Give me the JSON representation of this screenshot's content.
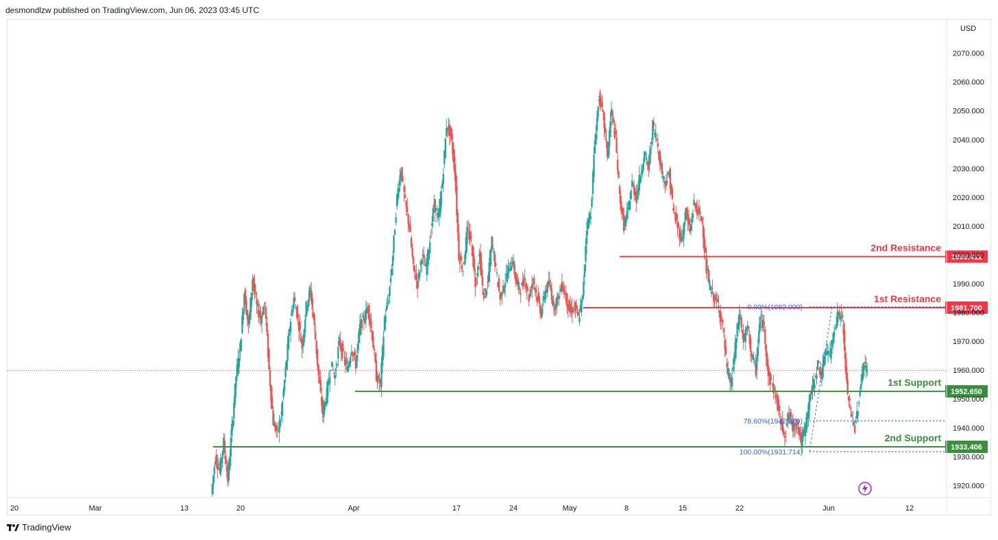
{
  "header": {
    "text": "desmondlzw published on TradingView.com, Jun 06, 2023 03:45 UTC"
  },
  "footer": {
    "brand": "TradingView"
  },
  "colors": {
    "up": "#26a69a",
    "down": "#ef5350",
    "resistance": "#f23645",
    "support": "#388e3c",
    "fib": "#2962ff"
  },
  "chart_data": {
    "type": "candlestick",
    "currency": "USD",
    "ylim": [
      1917,
      2078
    ],
    "y_ticks": [
      1920,
      1930,
      1940,
      1950,
      1960,
      1970,
      1980,
      1990,
      2000,
      2010,
      2020,
      2030,
      2040,
      2050,
      2060,
      2070
    ],
    "x_ticks": [
      "20",
      "Mar",
      "13",
      "20",
      "Apr",
      "17",
      "24",
      "May",
      "8",
      "15",
      "22",
      "Jun",
      "12"
    ],
    "current_price": 1959.9,
    "levels": [
      {
        "name": "2nd Resistance",
        "value": 1999.411,
        "label": "1999.411",
        "kind": "resistance"
      },
      {
        "name": "1st Resistance",
        "value": 1981.7,
        "label": "1981.700",
        "kind": "resistance"
      },
      {
        "name": "1st Support",
        "value": 1952.65,
        "label": "1952.650",
        "kind": "support"
      },
      {
        "name": "2nd Support",
        "value": 1933.406,
        "label": "1933.406",
        "kind": "support"
      }
    ],
    "fib_levels": [
      {
        "label": "0.00%(1982.000)",
        "value": 1982.0
      },
      {
        "label": "78.60%(1942.420)",
        "value": 1942.42
      },
      {
        "label": "100.00%(1931.714)",
        "value": 1931.714
      }
    ],
    "price_path": [
      1917,
      1930,
      1925,
      1935,
      1922,
      1940,
      1958,
      1968,
      1987,
      1975,
      1992,
      1982,
      1978,
      1983,
      1960,
      1942,
      1938,
      1945,
      1960,
      1975,
      1985,
      1978,
      1968,
      1982,
      1988,
      1975,
      1958,
      1945,
      1952,
      1962,
      1958,
      1970,
      1965,
      1960,
      1968,
      1962,
      1975,
      1978,
      1982,
      1972,
      1958,
      1955,
      1978,
      1985,
      2000,
      2020,
      2030,
      2018,
      2010,
      1995,
      1990,
      2000,
      1995,
      2005,
      2018,
      2012,
      2025,
      2045,
      2042,
      2030,
      2000,
      1995,
      2008,
      2005,
      1990,
      2000,
      1985,
      1990,
      2005,
      1995,
      1985,
      1990,
      1995,
      1998,
      1990,
      1988,
      1992,
      1985,
      1992,
      1985,
      1980,
      1988,
      1990,
      1982,
      1985,
      1990,
      1985,
      1980,
      1982,
      1978,
      1985,
      2010,
      2015,
      2040,
      2055,
      2048,
      2035,
      2050,
      2040,
      2020,
      2010,
      2015,
      2025,
      2020,
      2028,
      2035,
      2030,
      2045,
      2040,
      2030,
      2025,
      2028,
      2015,
      2010,
      2005,
      2015,
      2008,
      2018,
      2015,
      2012,
      1995,
      1988,
      1985,
      1982,
      1975,
      1960,
      1955,
      1968,
      1980,
      1970,
      1975,
      1965,
      1960,
      1978,
      1975,
      1958,
      1955,
      1950,
      1942,
      1938,
      1945,
      1940,
      1942,
      1935,
      1940,
      1950,
      1955,
      1962,
      1958,
      1968,
      1965,
      1975,
      1980,
      1978,
      1955,
      1945,
      1940,
      1950,
      1962,
      1960
    ],
    "event_icon": "lightning-icon"
  }
}
